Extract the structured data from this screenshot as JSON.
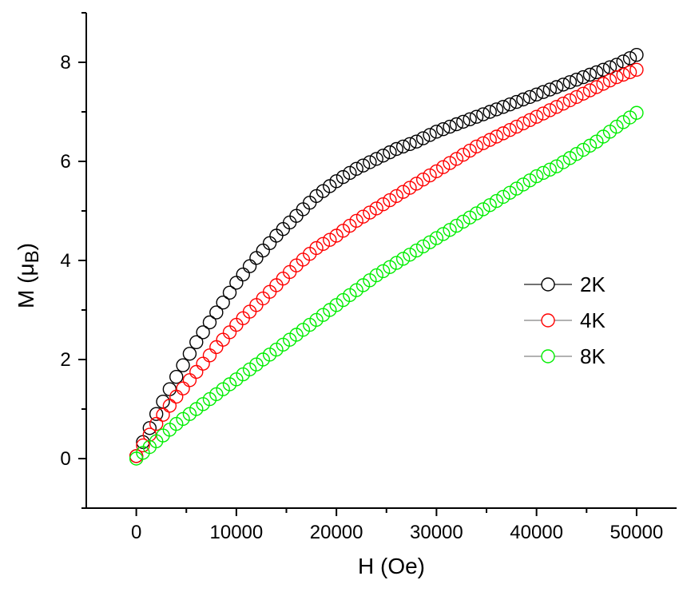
{
  "chart_data": {
    "type": "scatter",
    "xlabel": "H (Oe)",
    "ylabel": "M (μB)",
    "ylabel_parts": {
      "prefix": "M (",
      "greek": "μ",
      "sub": "B",
      "suffix": ")"
    },
    "xlim": [
      -5000,
      54000
    ],
    "ylim": [
      -1,
      9
    ],
    "x_ticks": [
      0,
      10000,
      20000,
      30000,
      40000,
      50000
    ],
    "x_tick_labels": [
      "0",
      "10000",
      "20000",
      "30000",
      "40000",
      "50000"
    ],
    "y_ticks": [
      0,
      2,
      4,
      6,
      8
    ],
    "y_tick_labels": [
      "0",
      "2",
      "4",
      "6",
      "8"
    ],
    "grid": false,
    "legend_position": "center-right",
    "marker": "open-circle",
    "series": [
      {
        "name": "2K",
        "color": "#000000",
        "x": [
          0,
          2000,
          4000,
          6000,
          8000,
          10000,
          12000,
          14000,
          16000,
          18000,
          20000,
          22000,
          24000,
          26000,
          28000,
          30000,
          32000,
          34000,
          36000,
          38000,
          40000,
          42000,
          44000,
          46000,
          48000,
          50000
        ],
        "y": [
          0.05,
          0.9,
          1.65,
          2.35,
          2.95,
          3.55,
          4.05,
          4.5,
          4.9,
          5.3,
          5.6,
          5.85,
          6.05,
          6.25,
          6.4,
          6.6,
          6.75,
          6.9,
          7.05,
          7.2,
          7.35,
          7.5,
          7.65,
          7.8,
          7.95,
          8.15
        ]
      },
      {
        "name": "4K",
        "color": "#ff0000",
        "x": [
          0,
          2000,
          4000,
          6000,
          8000,
          10000,
          12000,
          14000,
          16000,
          18000,
          20000,
          22000,
          24000,
          26000,
          28000,
          30000,
          32000,
          34000,
          36000,
          38000,
          40000,
          42000,
          44000,
          46000,
          48000,
          50000
        ],
        "y": [
          0.05,
          0.7,
          1.25,
          1.75,
          2.25,
          2.7,
          3.1,
          3.5,
          3.9,
          4.25,
          4.5,
          4.8,
          5.05,
          5.3,
          5.55,
          5.8,
          6.05,
          6.3,
          6.5,
          6.7,
          6.9,
          7.1,
          7.3,
          7.5,
          7.7,
          7.85
        ]
      },
      {
        "name": "8K",
        "color": "#00ee00",
        "x": [
          0,
          2000,
          4000,
          6000,
          8000,
          10000,
          12000,
          14000,
          16000,
          18000,
          20000,
          22000,
          24000,
          26000,
          28000,
          30000,
          32000,
          34000,
          36000,
          38000,
          40000,
          42000,
          44000,
          46000,
          48000,
          50000
        ],
        "y": [
          0.0,
          0.35,
          0.7,
          1.0,
          1.3,
          1.6,
          1.9,
          2.2,
          2.5,
          2.8,
          3.1,
          3.4,
          3.7,
          3.95,
          4.2,
          4.45,
          4.7,
          4.95,
          5.2,
          5.45,
          5.7,
          5.9,
          6.15,
          6.4,
          6.7,
          6.98
        ]
      }
    ]
  }
}
